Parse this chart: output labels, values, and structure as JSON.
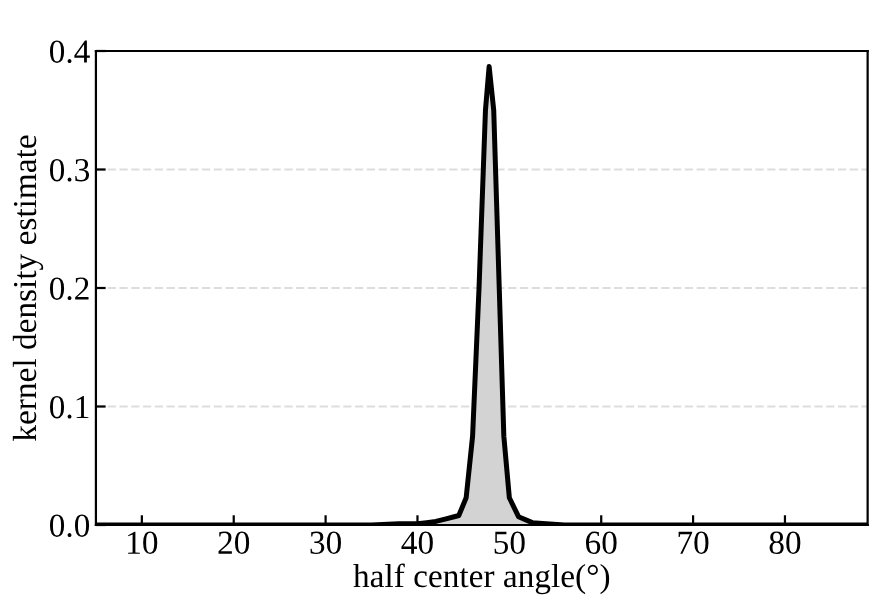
{
  "chart_data": {
    "type": "area",
    "xlabel": "half center angle(°)",
    "ylabel": "kernel density estimate",
    "x": [
      5,
      20,
      30,
      35,
      38,
      40,
      41,
      42,
      43,
      44,
      44.5,
      45.3,
      46,
      46.7,
      47.4,
      47.8,
      48.3,
      48.9,
      49.4,
      50,
      51,
      52.5,
      54,
      56,
      60,
      70,
      89
    ],
    "series": [
      {
        "color": "#d3d3d3",
        "values": [
          0,
          0,
          0,
          0,
          0.001,
          0.001,
          0.002,
          0.003,
          0.005,
          0.007,
          0.008,
          0.023,
          0.075,
          0.2,
          0.35,
          0.387,
          0.35,
          0.2,
          0.075,
          0.023,
          0.007,
          0.002,
          0.001,
          0,
          0,
          0,
          0
        ]
      }
    ],
    "xlim": [
      5,
      89
    ],
    "ylim": [
      0,
      0.4
    ],
    "xticks": [
      10,
      20,
      30,
      40,
      50,
      60,
      70,
      80
    ],
    "yticks": [
      {
        "value": 0,
        "label": "0.0"
      },
      0.1,
      0.2,
      0.3,
      0.4
    ],
    "grid": "y"
  }
}
